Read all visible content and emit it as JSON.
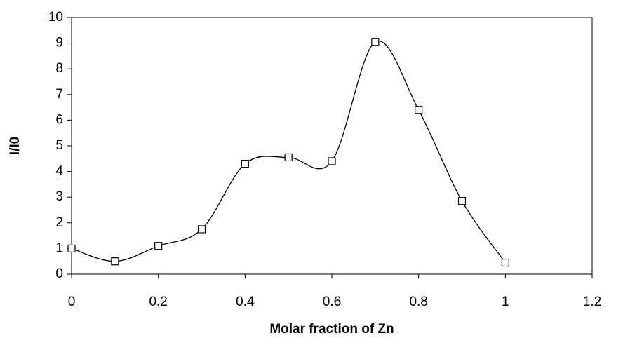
{
  "chart_data": {
    "type": "line",
    "x_label": "Molar fraction of Zn",
    "y_label": "I/I0",
    "x": [
      0,
      0.1,
      0.2,
      0.3,
      0.4,
      0.5,
      0.6,
      0.7,
      0.8,
      0.9,
      1.0
    ],
    "series": [
      {
        "color": "#000000",
        "values": [
          1.0,
          0.5,
          1.1,
          1.75,
          4.3,
          4.55,
          4.4,
          9.05,
          6.4,
          2.85,
          0.45
        ]
      }
    ],
    "xlim": [
      0,
      1.2
    ],
    "xticks": [
      0,
      0.2,
      0.4,
      0.6,
      0.8,
      1,
      1.2
    ],
    "ylim": [
      0,
      10
    ],
    "yticks": [
      0,
      1,
      2,
      3,
      4,
      5,
      6,
      7,
      8,
      9,
      10
    ],
    "smooth": true,
    "markers": "square"
  }
}
